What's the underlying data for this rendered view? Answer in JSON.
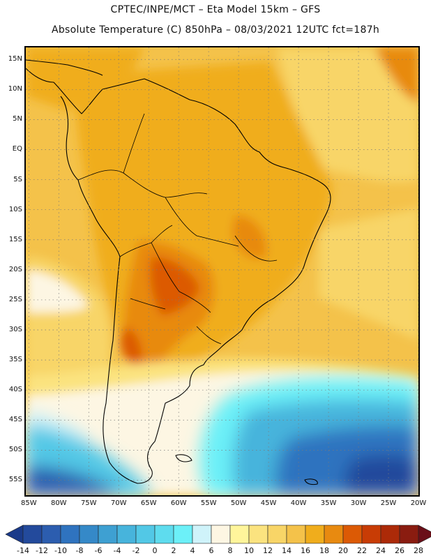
{
  "header": {
    "line1": "CPTEC/INPE/MCT –  Eta Model 15km – GFS",
    "line2": "Absolute Temperature (C) 850hPa – 08/03/2021 12UTC fct=187h"
  },
  "map": {
    "latitude_labels": [
      "15N",
      "10N",
      "5N",
      "EQ",
      "5S",
      "10S",
      "15S",
      "20S",
      "25S",
      "30S",
      "35S",
      "40S",
      "45S",
      "50S",
      "55S"
    ],
    "latitude_values": [
      15,
      10,
      5,
      0,
      -5,
      -10,
      -15,
      -20,
      -25,
      -30,
      -35,
      -40,
      -45,
      -50,
      -55
    ],
    "longitude_labels": [
      "85W",
      "80W",
      "75W",
      "70W",
      "65W",
      "60W",
      "55W",
      "50W",
      "45W",
      "40W",
      "35W",
      "30W",
      "25W",
      "20W"
    ],
    "longitude_values": [
      -85,
      -80,
      -75,
      -70,
      -65,
      -60,
      -55,
      -50,
      -45,
      -40,
      -35,
      -30,
      -25,
      -20
    ],
    "extent": {
      "lon_min": -85.5,
      "lon_max": -20,
      "lat_min": -57.5,
      "lat_max": 17
    }
  },
  "colorbar": {
    "levels": [
      "-14",
      "-12",
      "-10",
      "-8",
      "-6",
      "-4",
      "-2",
      "0",
      "2",
      "4",
      "6",
      "8",
      "10",
      "12",
      "14",
      "16",
      "18",
      "20",
      "22",
      "24",
      "26",
      "28"
    ],
    "colors": [
      "#1a3a8a",
      "#234a9c",
      "#2c5daf",
      "#2f73bf",
      "#3589c8",
      "#3ea0d2",
      "#47b4dc",
      "#52c8e6",
      "#5edcee",
      "#6cf0f8",
      "#cff3fa",
      "#fdf6e3",
      "#fff59b",
      "#fbe37f",
      "#f8d567",
      "#f4c24a",
      "#f0ad1c",
      "#e88a10",
      "#dc5a05",
      "#c83c05",
      "#ac2a08",
      "#8a1c10",
      "#6a0e18"
    ]
  }
}
